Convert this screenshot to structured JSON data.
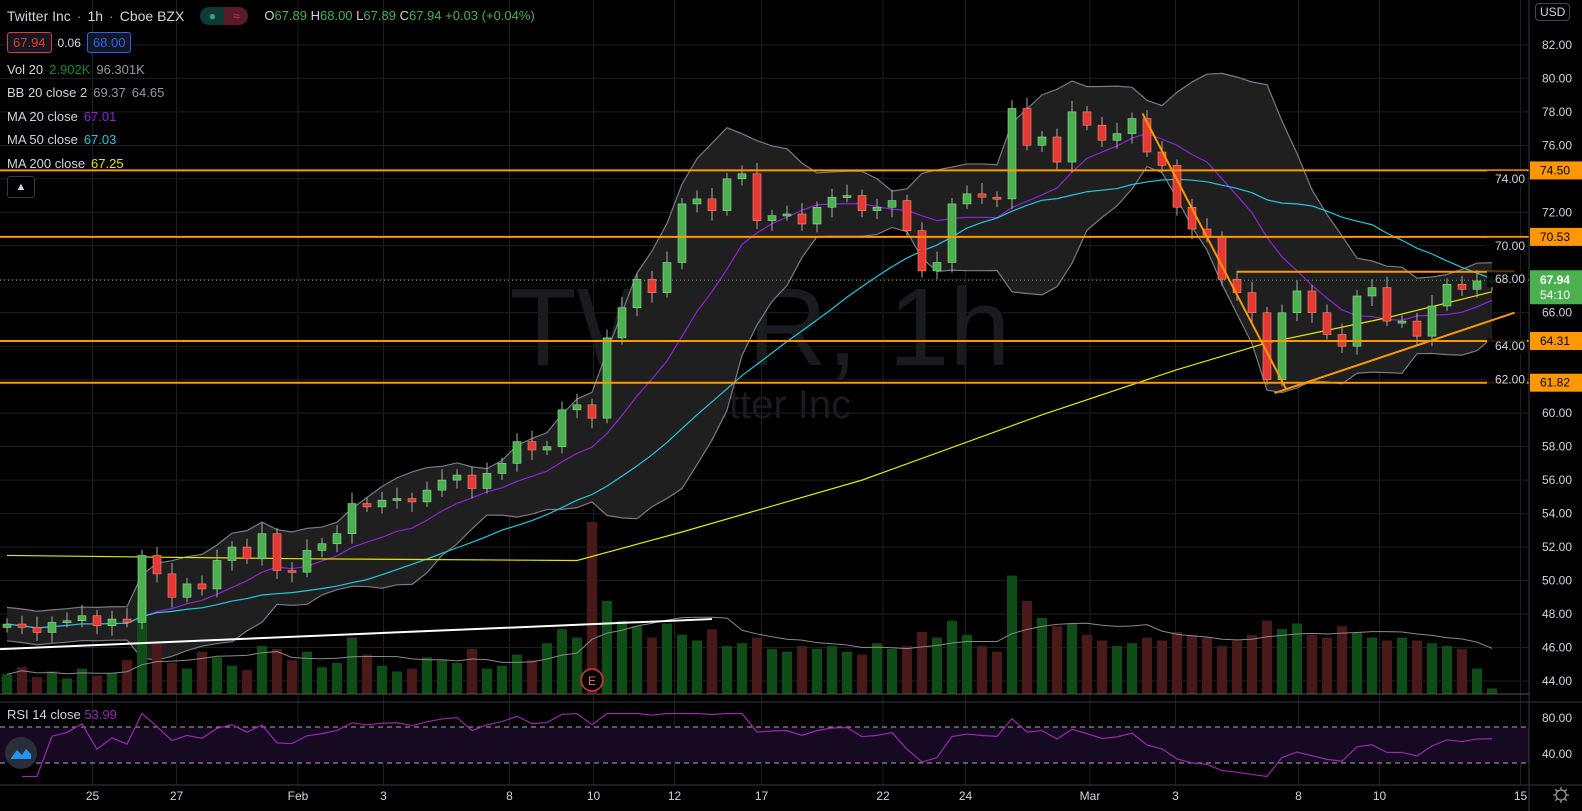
{
  "header": {
    "symbol_name": "Twitter Inc",
    "interval": "1h",
    "exchange": "Cboe BZX",
    "sep": "·",
    "o_label": "O",
    "o": "67.89",
    "h_label": "H",
    "h": "68.00",
    "l_label": "L",
    "l": "67.89",
    "c_label": "C",
    "c": "67.94",
    "change": "+0.03 (+0.04%)",
    "bid": "67.94",
    "spread": "0.06",
    "ask": "68.00",
    "market_status_icon": "dot-icon",
    "data_icon": "approx-icon"
  },
  "indicators": {
    "vol": {
      "label": "Vol 20",
      "v1": "2.902K",
      "v2": "96.301K"
    },
    "bb": {
      "label": "BB 20 close 2",
      "upper": "69.37",
      "lower": "64.65"
    },
    "ma20": {
      "label": "MA 20 close",
      "value": "67.01"
    },
    "ma50": {
      "label": "MA 50 close",
      "value": "67.03"
    },
    "ma200": {
      "label": "MA 200 close",
      "value": "67.25"
    },
    "rsi": {
      "label": "RSI 14 close",
      "value": "53.99"
    }
  },
  "watermark": {
    "ticker": "TWTR, 1h",
    "name": "Twitter Inc"
  },
  "currency": "USD",
  "countdown": "54:10",
  "earnings_badge": "E",
  "collapse_icon": "chevron-up-icon",
  "colors": {
    "up": "#4caf50",
    "down": "#e53935",
    "ma20": "#8e24d8",
    "ma50": "#26c6da",
    "ma200": "#e6e600",
    "bb": "#787b86",
    "level": "#ff9800",
    "rsi": "#9c27b0",
    "trend_white": "#ffffff"
  },
  "chart_data": {
    "type": "candlestick",
    "title": "Twitter Inc · 1h · Cboe BZX",
    "ylim": [
      43,
      83
    ],
    "y_ticks": [
      "44.00",
      "46.00",
      "48.00",
      "50.00",
      "52.00",
      "54.00",
      "56.00",
      "58.00",
      "60.00",
      "62.00",
      "64.00",
      "66.00",
      "68.00",
      "70.00",
      "72.00",
      "74.00",
      "76.00",
      "78.00",
      "80.00",
      "82.00"
    ],
    "x_ticks": [
      {
        "label": "25",
        "at": 5.7
      },
      {
        "label": "27",
        "at": 11.3
      },
      {
        "label": "Feb",
        "at": 19.4
      },
      {
        "label": "3",
        "at": 25.1
      },
      {
        "label": "8",
        "at": 33.5
      },
      {
        "label": "10",
        "at": 39.1
      },
      {
        "label": "12",
        "at": 44.5
      },
      {
        "label": "17",
        "at": 50.3
      },
      {
        "label": "22",
        "at": 58.4
      },
      {
        "label": "24",
        "at": 63.9
      },
      {
        "label": "Mar",
        "at": 72.2
      },
      {
        "label": "3",
        "at": 77.9
      },
      {
        "label": "8",
        "at": 86.1
      },
      {
        "label": "10",
        "at": 91.5
      },
      {
        "label": "15",
        "at": 100.9
      }
    ],
    "close": [
      47.4,
      47.2,
      46.9,
      47.5,
      47.6,
      47.9,
      47.3,
      47.7,
      47.5,
      51.5,
      50.4,
      49.0,
      49.8,
      49.5,
      51.2,
      52.0,
      51.3,
      52.8,
      50.6,
      50.5,
      51.8,
      52.2,
      52.8,
      54.6,
      54.4,
      54.8,
      54.9,
      54.7,
      55.4,
      56.0,
      56.3,
      55.5,
      56.4,
      57.0,
      58.3,
      57.8,
      58.0,
      60.2,
      60.5,
      59.7,
      64.5,
      66.3,
      68.0,
      67.2,
      69.0,
      72.5,
      72.8,
      72.1,
      74.0,
      74.3,
      71.5,
      71.8,
      71.9,
      71.3,
      72.3,
      72.9,
      73.0,
      72.1,
      72.3,
      72.7,
      70.9,
      68.5,
      69.0,
      72.5,
      73.1,
      72.9,
      72.8,
      78.2,
      76.0,
      76.5,
      75.0,
      78.0,
      77.2,
      76.3,
      76.7,
      77.6,
      75.6,
      74.8,
      72.3,
      71.0,
      70.5,
      68.0,
      67.2,
      66.0,
      62.0,
      66.0,
      67.3,
      66.0,
      64.7,
      64.0,
      67.0,
      67.5,
      65.5,
      65.5,
      64.6,
      66.4,
      67.7,
      67.4,
      67.9,
      67.94
    ],
    "volume_k": [
      70,
      95,
      60,
      80,
      55,
      90,
      65,
      75,
      120,
      330,
      180,
      110,
      90,
      150,
      130,
      100,
      85,
      170,
      160,
      120,
      150,
      95,
      110,
      200,
      140,
      100,
      80,
      90,
      130,
      120,
      110,
      160,
      90,
      100,
      140,
      120,
      180,
      230,
      200,
      610,
      330,
      260,
      240,
      200,
      250,
      210,
      190,
      230,
      170,
      180,
      200,
      160,
      150,
      170,
      160,
      170,
      150,
      140,
      180,
      160,
      170,
      220,
      200,
      260,
      210,
      170,
      150,
      420,
      330,
      270,
      240,
      250,
      210,
      190,
      170,
      180,
      200,
      190,
      220,
      210,
      200,
      170,
      190,
      210,
      260,
      230,
      250,
      210,
      200,
      240,
      220,
      200,
      190,
      200,
      190,
      180,
      170,
      160,
      90,
      20
    ],
    "ma200": [
      {
        "at": 0,
        "v": 51.5
      },
      {
        "at": 20,
        "v": 51.3
      },
      {
        "at": 38,
        "v": 51.2
      },
      {
        "at": 45,
        "v": 52.9
      },
      {
        "at": 57,
        "v": 56.0
      },
      {
        "at": 69,
        "v": 59.9
      },
      {
        "at": 78,
        "v": 62.6
      },
      {
        "at": 84,
        "v": 64.2
      },
      {
        "at": 92,
        "v": 65.7
      },
      {
        "at": 99,
        "v": 67.25
      }
    ],
    "levels": [
      74.5,
      70.53,
      64.31,
      61.82
    ],
    "trendlines": [
      {
        "color": "white",
        "from": {
          "at": -0.5,
          "v": 45.9
        },
        "to": {
          "at": 47,
          "v": 47.7
        }
      },
      {
        "color": "orange",
        "from": {
          "at": 75.7,
          "v": 77.9
        },
        "to": {
          "at": 85.3,
          "v": 61.4
        }
      },
      {
        "color": "orange",
        "from": {
          "at": 84.5,
          "v": 61.2
        },
        "to": {
          "at": 100.5,
          "v": 66.0
        }
      },
      {
        "color": "orange",
        "from": {
          "at": 82,
          "v": 68.45
        },
        "to": {
          "at": 100.5,
          "v": 68.45
        }
      }
    ],
    "rsi_ylim": [
      10,
      100
    ],
    "rsi_bands": [
      30,
      70
    ],
    "rsi_ticks": [
      "80.00",
      "40.00"
    ],
    "last_price": 67.94
  }
}
